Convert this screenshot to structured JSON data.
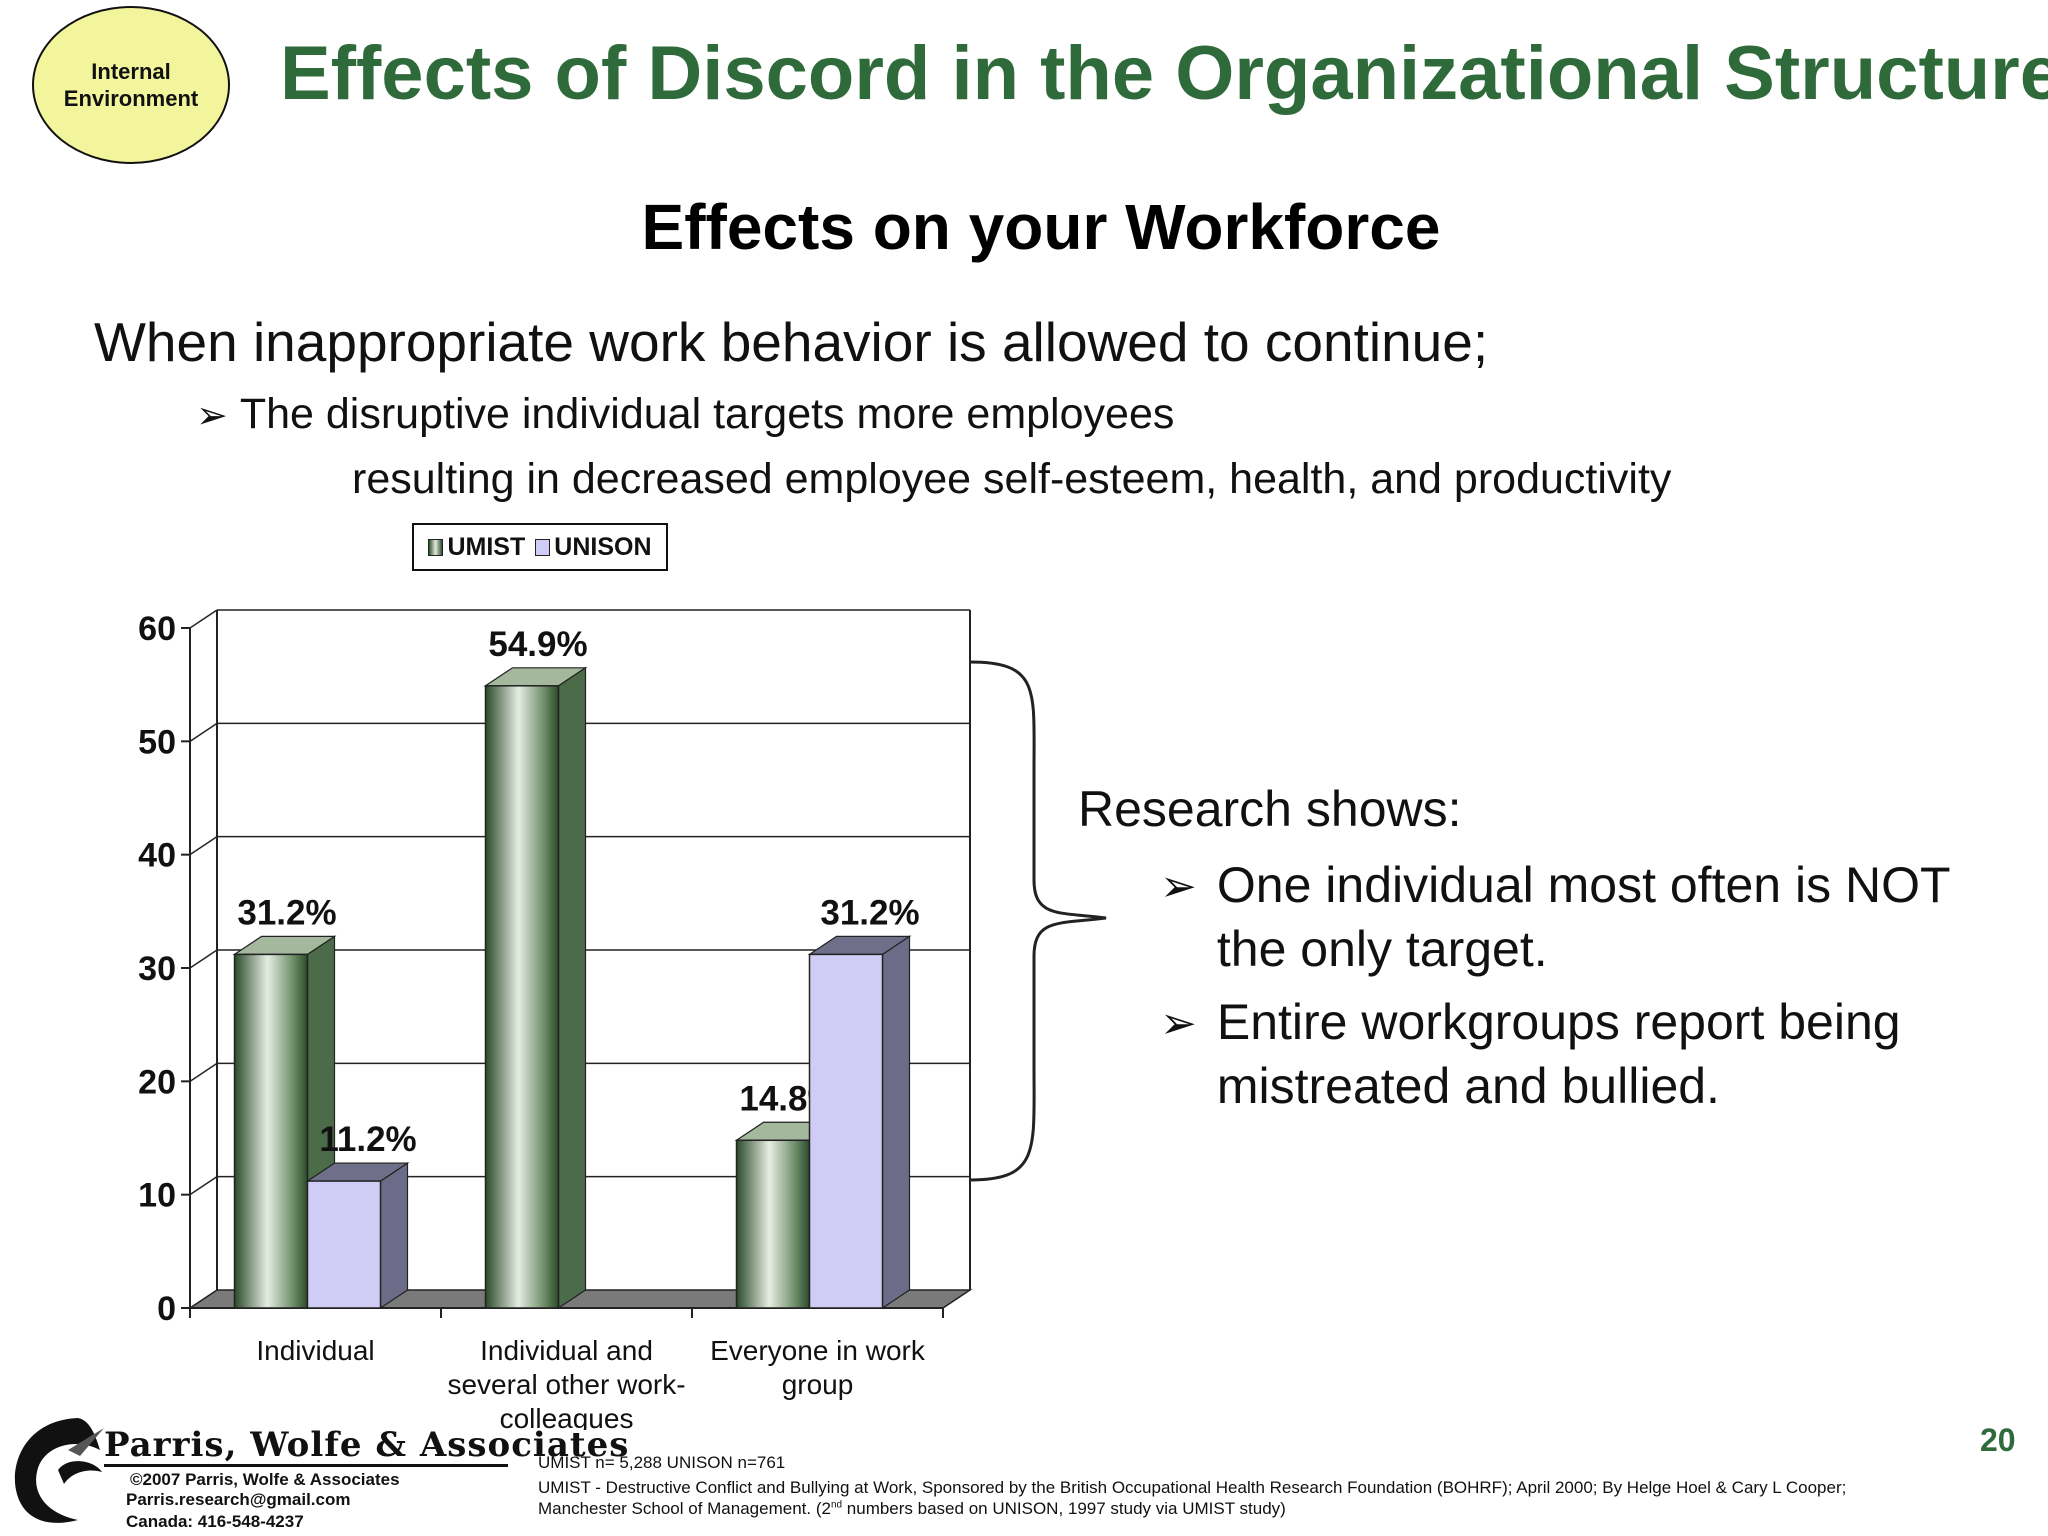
{
  "badge": {
    "line1": "Internal",
    "line2": "Environment"
  },
  "title": "Effects of Discord in the Organizational Structure",
  "subtitle": "Effects on your Workforce",
  "intro": "When inappropriate work behavior is allowed to continue;",
  "bullet": "The disruptive individual targets more employees",
  "bullet_continuation": "resulting in decreased employee self-esteem, health, and productivity",
  "research": {
    "heading": "Research shows:",
    "points": [
      "One individual most often is NOT the only target.",
      "Entire workgroups report being mistreated and bullied."
    ]
  },
  "colors": {
    "title_green": "#2e6a3a",
    "umist": "#3f6b3f",
    "unison": "#cfcdf6",
    "badge_fill": "#f2f59c"
  },
  "icons": {
    "bullet": "arrowhead-bullet-icon",
    "brace": "curly-brace-icon",
    "logo": "parris-wolfe-swirl-logo"
  },
  "chart_data": {
    "type": "bar",
    "categories": [
      "Individual",
      "Individual and several other work-colleagues",
      "Everyone in work group"
    ],
    "category_lines": [
      [
        "Individual"
      ],
      [
        "Individual and",
        "several other work-",
        "colleagues"
      ],
      [
        "Everyone in work",
        "group"
      ]
    ],
    "series": [
      {
        "name": "UMIST",
        "values": [
          31.2,
          54.9,
          14.8
        ],
        "labels": [
          "31.2%",
          "54.9%",
          "14.8%"
        ]
      },
      {
        "name": "UNISON",
        "values": [
          11.2,
          null,
          31.2
        ],
        "labels": [
          "11.2%",
          "",
          "31.2%"
        ]
      }
    ],
    "ylim": [
      0,
      60
    ],
    "yticks": [
      0,
      10,
      20,
      30,
      40,
      50,
      60
    ],
    "grid": true,
    "legend": "top",
    "style": "3d-column"
  },
  "footer": {
    "logo_text": "Parris, Wolfe & Associates",
    "copyright": "©2007 Parris, Wolfe & Associates",
    "email": "Parris.research@gmail.com",
    "phone": "Canada: 416-548-4237",
    "n_note": "UMIST n= 5,288  UNISON n=761",
    "source_line1": "UMIST - Destructive Conflict and Bullying at Work, Sponsored by the British Occupational Health Research Foundation (BOHRF); April 2000; By Helge Hoel & Cary L Cooper;",
    "source_line2_a": "Manchester School of Management. (2",
    "source_line2_sup": "nd",
    "source_line2_b": " numbers based on UNISON, 1997 study via UMIST study)"
  },
  "page_number": "20"
}
